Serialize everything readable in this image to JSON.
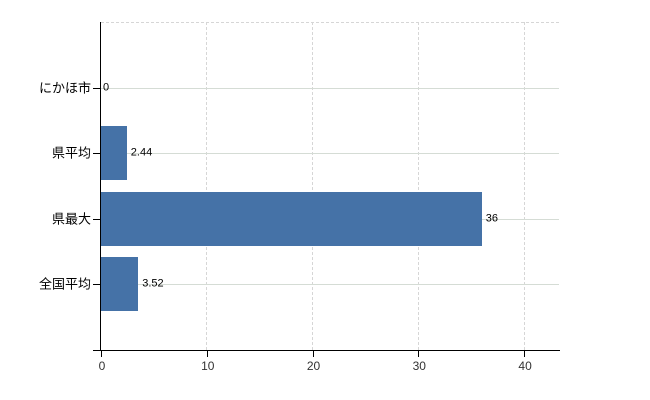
{
  "chart_data": {
    "type": "bar",
    "orientation": "horizontal",
    "title": "",
    "xlabel": "",
    "ylabel": "",
    "legend": false,
    "grid": true,
    "categories": [
      "にかほ市",
      "県平均",
      "県最大",
      "全国平均"
    ],
    "values": [
      0,
      2.44,
      36,
      3.52
    ],
    "value_labels": [
      "0",
      "2.44",
      "36",
      "3.52"
    ],
    "x_ticks": [
      0,
      10,
      20,
      30,
      40
    ],
    "x_tick_labels": [
      "0",
      "10",
      "20",
      "30",
      "40"
    ],
    "xlim": [
      0,
      43.3
    ],
    "colors": {
      "bar_fill": "#4572a7",
      "vertical_gridline": "#d6d6d6",
      "horizontal_gridline": "#d5dcd5",
      "axis_line": "#000000",
      "tick_label": "#333333",
      "category_label": "#000000",
      "value_label": "#000000",
      "background": "#ffffff"
    }
  }
}
